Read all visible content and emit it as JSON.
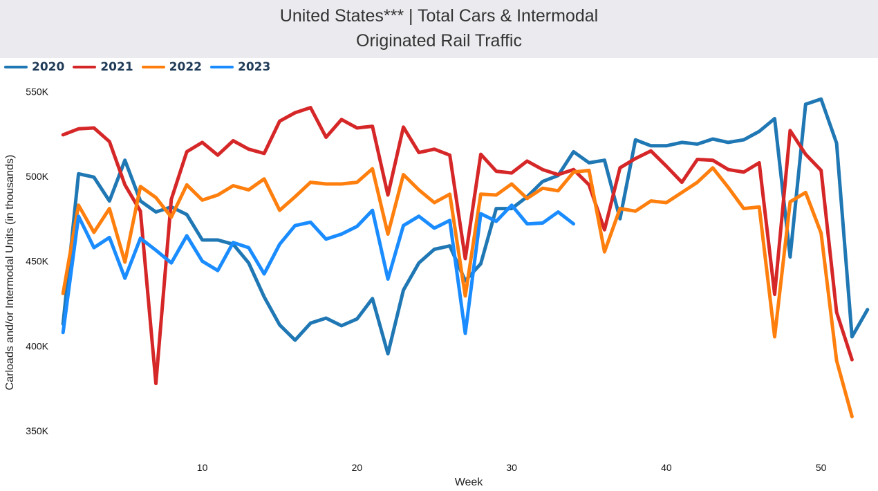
{
  "header": {
    "title_line1": "United States*** | Total Cars & Intermodal",
    "title_line2": "Originated Rail Traffic"
  },
  "chart_data": {
    "type": "line",
    "title": "United States*** | Total Cars & Intermodal Originated Rail Traffic",
    "xlabel": "Week",
    "ylabel": "Carloads and/or Intermodal Units (in thousands)",
    "xlim": [
      0.5,
      53.5
    ],
    "ylim": [
      335,
      555
    ],
    "x_ticks": [
      10,
      20,
      30,
      40,
      50
    ],
    "x_tick_labels": [
      "10",
      "20",
      "30",
      "40",
      "50"
    ],
    "y_ticks": [
      350,
      400,
      450,
      500,
      550
    ],
    "y_tick_labels": [
      "350K",
      "400K",
      "450K",
      "500K",
      "550K"
    ],
    "legend_position": "top-left",
    "grid": false,
    "series": [
      {
        "name": "2020",
        "color": "#1f77b4",
        "x": [
          1,
          2,
          3,
          4,
          5,
          6,
          7,
          8,
          9,
          10,
          11,
          12,
          13,
          14,
          15,
          16,
          17,
          18,
          19,
          20,
          21,
          22,
          23,
          24,
          25,
          26,
          27,
          28,
          29,
          30,
          31,
          32,
          33,
          34,
          35,
          36,
          37,
          38,
          39,
          40,
          41,
          42,
          43,
          44,
          45,
          46,
          47,
          48,
          49,
          50,
          51,
          52,
          53
        ],
        "values": [
          413,
          501.5,
          499.5,
          485.5,
          509.5,
          485.5,
          479,
          482,
          477.5,
          462.5,
          462.5,
          460,
          449,
          429,
          412.5,
          403.5,
          413.5,
          416.5,
          412,
          416,
          428,
          395.5,
          433,
          449,
          457,
          459,
          438.5,
          448.5,
          481,
          481,
          488,
          497,
          500.5,
          514.5,
          508,
          509.5,
          475,
          521.5,
          518,
          518,
          520,
          519,
          522,
          520,
          521.5,
          526.5,
          534,
          452.5,
          542.5,
          545.5,
          519.5,
          405.5,
          421.5
        ]
      },
      {
        "name": "2021",
        "color": "#d62728",
        "x": [
          1,
          2,
          3,
          4,
          5,
          6,
          7,
          8,
          9,
          10,
          11,
          12,
          13,
          14,
          15,
          16,
          17,
          18,
          19,
          20,
          21,
          22,
          23,
          24,
          25,
          26,
          27,
          28,
          29,
          30,
          31,
          32,
          33,
          34,
          35,
          36,
          37,
          38,
          39,
          40,
          41,
          42,
          43,
          44,
          45,
          46,
          47,
          48,
          49,
          50,
          51,
          52
        ],
        "values": [
          524.5,
          528,
          528.5,
          520.5,
          495,
          479.5,
          378,
          486.5,
          514.5,
          520,
          512.5,
          521,
          516,
          513.5,
          532.5,
          537.5,
          540.5,
          523,
          533.5,
          528.5,
          529.5,
          489,
          529,
          514,
          516,
          512.5,
          451.5,
          513,
          503,
          502,
          509,
          504,
          501,
          504,
          495,
          468.5,
          505,
          510.5,
          515,
          506,
          496.5,
          510,
          509.5,
          504,
          502.5,
          508,
          430.5,
          527,
          513,
          503.5,
          420,
          392
        ]
      },
      {
        "name": "2022",
        "color": "#ff7f0e",
        "x": [
          1,
          2,
          3,
          4,
          5,
          6,
          7,
          8,
          9,
          10,
          11,
          12,
          13,
          14,
          15,
          16,
          17,
          18,
          19,
          20,
          21,
          22,
          23,
          24,
          25,
          26,
          27,
          28,
          29,
          30,
          31,
          32,
          33,
          34,
          35,
          36,
          37,
          38,
          39,
          40,
          41,
          42,
          43,
          44,
          45,
          46,
          47,
          48,
          49,
          50,
          51,
          52
        ],
        "values": [
          431,
          483,
          467,
          481,
          449.5,
          494,
          487.5,
          476,
          495,
          486,
          489,
          494.5,
          492,
          498.5,
          480,
          488,
          496.5,
          495.5,
          495.5,
          496.5,
          504.5,
          466,
          501,
          492,
          484.5,
          489.5,
          429.5,
          489.5,
          489,
          495.5,
          487,
          493,
          491.5,
          502.5,
          503.5,
          455.5,
          481,
          479.5,
          485.5,
          484.5,
          490.5,
          496.5,
          505,
          493.5,
          481,
          482,
          405.5,
          485,
          490.5,
          466.5,
          391.5,
          358.5
        ]
      },
      {
        "name": "2023",
        "color": "#1a8cff",
        "x": [
          1,
          2,
          3,
          4,
          5,
          6,
          7,
          8,
          9,
          10,
          11,
          12,
          13,
          14,
          15,
          16,
          17,
          18,
          19,
          20,
          21,
          22,
          23,
          24,
          25,
          26,
          27,
          28,
          29,
          30,
          31,
          32,
          33,
          34
        ],
        "values": [
          408,
          476.5,
          458,
          464,
          440,
          463.5,
          456.5,
          449,
          465,
          450,
          444.5,
          461,
          458,
          442.5,
          460,
          471,
          473,
          463,
          466,
          470.5,
          480,
          439.5,
          471,
          476.5,
          469.5,
          474,
          407.5,
          478,
          473.5,
          483,
          472,
          472.5,
          479,
          472
        ]
      }
    ]
  }
}
